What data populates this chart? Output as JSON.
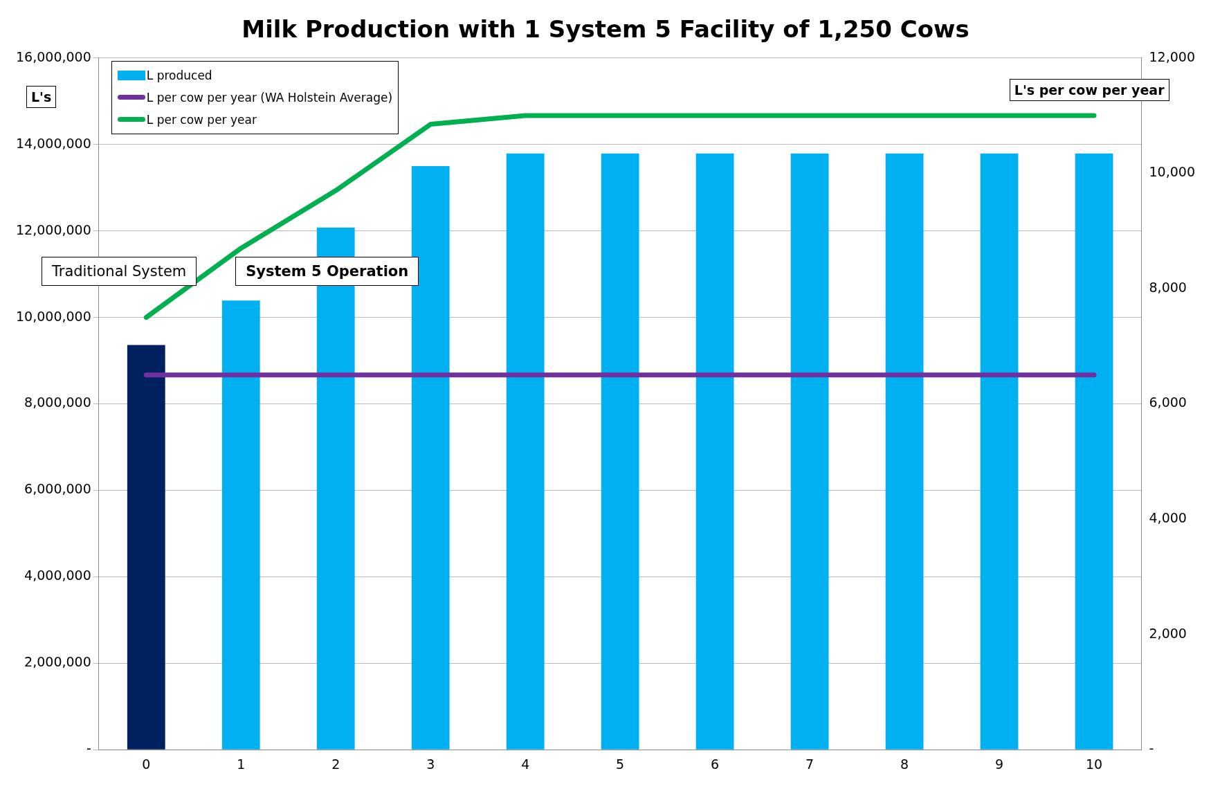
{
  "chart_data": {
    "type": "bar",
    "title": "Milk Production with 1 System 5 Facility of 1,250 Cows",
    "ylabel": "L's",
    "y2label": "L's per cow per year",
    "categories": [
      "0",
      "1",
      "2",
      "3",
      "4",
      "5",
      "6",
      "7",
      "8",
      "9",
      "10"
    ],
    "series": [
      {
        "name": "L produced",
        "colors": [
          "#002060",
          "#00b0f0",
          "#00b0f0",
          "#00b0f0",
          "#00b0f0",
          "#00b0f0",
          "#00b0f0",
          "#00b0f0",
          "#00b0f0",
          "#00b0f0",
          "#00b0f0"
        ],
        "color": "#00b0f0",
        "values": [
          9360000,
          10390000,
          12080000,
          13500000,
          13790000,
          13790000,
          13790000,
          13790000,
          13790000,
          13790000,
          13790000
        ]
      },
      {
        "name": "L per cow per year (WA Holstein Average)",
        "type": "line",
        "axis": "y2",
        "color": "#7030a0",
        "values": [
          6500,
          6500,
          6500,
          6500,
          6500,
          6500,
          6500,
          6500,
          6500,
          6500,
          6500
        ]
      },
      {
        "name": "L per cow per year",
        "type": "line",
        "axis": "y2",
        "color": "#00b050",
        "values": [
          7500,
          8700,
          9700,
          10850,
          11000,
          11000,
          11000,
          11000,
          11000,
          11000,
          11000
        ]
      }
    ],
    "ylim": [
      0,
      16000000
    ],
    "yticks": [
      {
        "value": 0,
        "label": "-"
      },
      {
        "value": 2000000,
        "label": "2,000,000"
      },
      {
        "value": 4000000,
        "label": "4,000,000"
      },
      {
        "value": 6000000,
        "label": "6,000,000"
      },
      {
        "value": 8000000,
        "label": "8,000,000"
      },
      {
        "value": 10000000,
        "label": "10,000,000"
      },
      {
        "value": 12000000,
        "label": "12,000,000"
      },
      {
        "value": 14000000,
        "label": "14,000,000"
      },
      {
        "value": 16000000,
        "label": "16,000,000"
      }
    ],
    "y2lim": [
      0,
      12000
    ],
    "y2ticks": [
      {
        "value": 0,
        "label": "-"
      },
      {
        "value": 2000,
        "label": "2,000"
      },
      {
        "value": 4000,
        "label": "4,000"
      },
      {
        "value": 6000,
        "label": "6,000"
      },
      {
        "value": 8000,
        "label": "8,000"
      },
      {
        "value": 10000,
        "label": "10,000"
      },
      {
        "value": 12000,
        "label": "12,000"
      }
    ],
    "grid": "y",
    "legend": "top left",
    "marker": "none",
    "line_style": "solid",
    "annotations": [
      "Traditional System",
      "System 5 Operation"
    ]
  }
}
